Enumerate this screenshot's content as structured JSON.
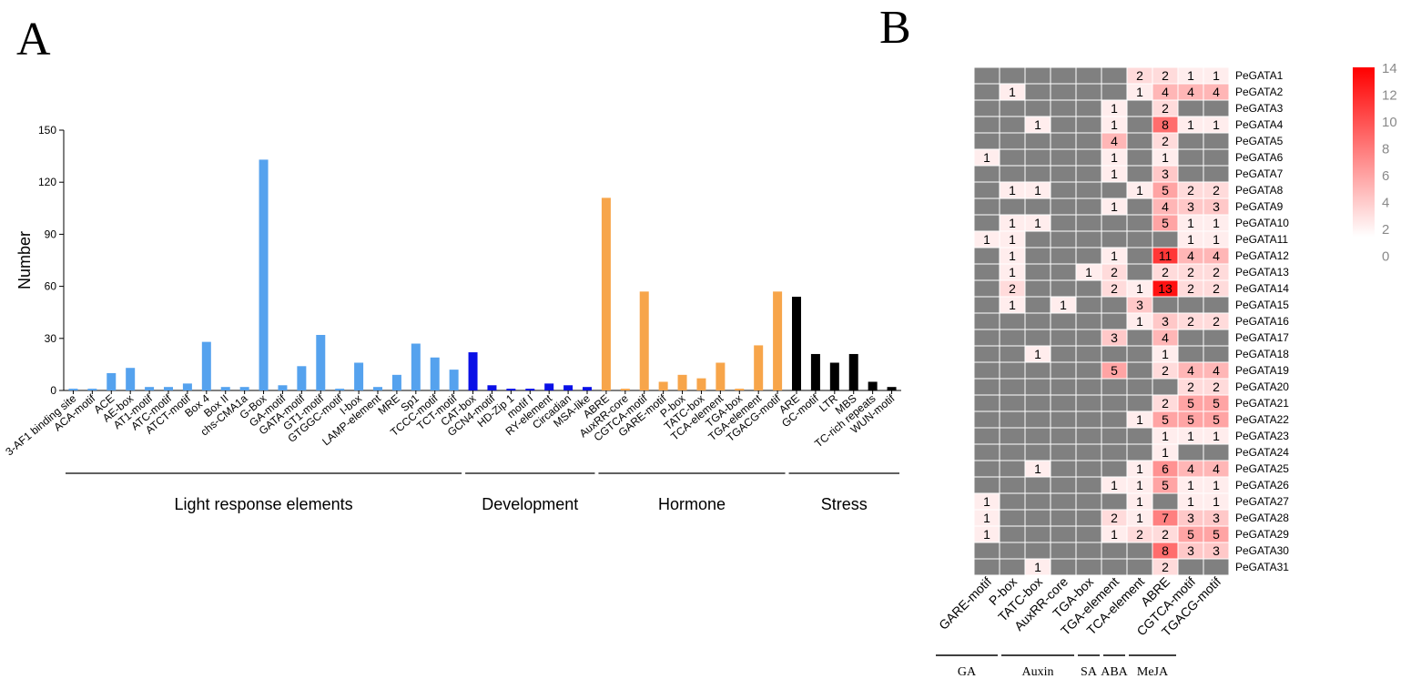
{
  "panels": {
    "a": "A",
    "b": "B"
  },
  "chart_data": [
    {
      "type": "bar",
      "panel": "A",
      "ylabel": "Number",
      "xlabel": "",
      "ylim": [
        0,
        150
      ],
      "yticks": [
        0,
        30,
        60,
        90,
        120,
        150
      ],
      "colors": {
        "Light response elements": "#55a2ee",
        "Development": "#0a10e6",
        "Hormone": "#f7a54a",
        "Stress": "#000000"
      },
      "categories": [
        "3-AF1 binding site",
        "ACA-motif",
        "ACE",
        "AE-box",
        "AT1-motif",
        "ATC-motif",
        "ATCT-motif",
        "Box 4",
        "Box II",
        "chs-CMA1a",
        "G-Box",
        "GA-motif",
        "GATA-motif",
        "GT1-motif",
        "GTGGC-motif",
        "I-box",
        "LAMP-element",
        "MRE",
        "Sp1",
        "TCCC-motif",
        "TCT-motif",
        "CAT-box",
        "GCN4-motif",
        "HD-Zip 1",
        "motif I",
        "RY-element",
        "Circadian",
        "MSA-like",
        "ABRE",
        "AuxRR-core",
        "CGTCA-motif",
        "GARE-motif",
        "P-box",
        "TATC-box",
        "TCA-element",
        "TGA-box",
        "TGA-element",
        "TGACG-motif",
        "ARE",
        "GC-motif",
        "LTR",
        "MBS",
        "TC-rich repeats",
        "WUN-motif"
      ],
      "values": [
        1,
        1,
        10,
        13,
        2,
        2,
        4,
        28,
        2,
        2,
        133,
        3,
        14,
        32,
        1,
        16,
        2,
        9,
        27,
        19,
        12,
        22,
        3,
        1,
        1,
        4,
        3,
        2,
        111,
        1,
        57,
        5,
        9,
        7,
        16,
        1,
        26,
        57,
        54,
        21,
        16,
        21,
        5,
        2
      ],
      "groups": [
        {
          "name": "Light response elements",
          "start": 0,
          "end": 20
        },
        {
          "name": "Development",
          "start": 21,
          "end": 27
        },
        {
          "name": "Hormone",
          "start": 28,
          "end": 37
        },
        {
          "name": "Stress",
          "start": 38,
          "end": 43
        }
      ]
    },
    {
      "type": "heatmap",
      "panel": "B",
      "columns": [
        "GARE-motif",
        "P-box",
        "TATC-box",
        "AuxRR-core",
        "TGA-box",
        "TGA-element",
        "TCA-element",
        "ABRE",
        "CGTCA-motif",
        "TGACG-motif"
      ],
      "rows": [
        "PeGATA1",
        "PeGATA2",
        "PeGATA3",
        "PeGATA4",
        "PeGATA5",
        "PeGATA6",
        "PeGATA7",
        "PeGATA8",
        "PeGATA9",
        "PeGATA10",
        "PeGATA11",
        "PeGATA12",
        "PeGATA13",
        "PeGATA14",
        "PeGATA15",
        "PeGATA16",
        "PeGATA17",
        "PeGATA18",
        "PeGATA19",
        "PeGATA20",
        "PeGATA21",
        "PeGATA22",
        "PeGATA23",
        "PeGATA24",
        "PeGATA25",
        "PeGATA26",
        "PeGATA27",
        "PeGATA28",
        "PeGATA29",
        "PeGATA30",
        "PeGATA31"
      ],
      "values": [
        [
          0,
          0,
          0,
          0,
          0,
          0,
          2,
          2,
          1,
          1
        ],
        [
          0,
          1,
          0,
          0,
          0,
          0,
          1,
          4,
          4,
          4
        ],
        [
          0,
          0,
          0,
          0,
          0,
          1,
          0,
          2,
          0,
          0
        ],
        [
          0,
          0,
          1,
          0,
          0,
          1,
          0,
          8,
          1,
          1
        ],
        [
          0,
          0,
          0,
          0,
          0,
          4,
          0,
          2,
          0,
          0
        ],
        [
          1,
          0,
          0,
          0,
          0,
          1,
          0,
          1,
          0,
          0
        ],
        [
          0,
          0,
          0,
          0,
          0,
          1,
          0,
          3,
          0,
          0
        ],
        [
          0,
          1,
          1,
          0,
          0,
          0,
          1,
          5,
          2,
          2
        ],
        [
          0,
          0,
          0,
          0,
          0,
          1,
          0,
          4,
          3,
          3
        ],
        [
          0,
          1,
          1,
          0,
          0,
          0,
          0,
          5,
          1,
          1
        ],
        [
          1,
          1,
          0,
          0,
          0,
          0,
          0,
          0,
          1,
          1
        ],
        [
          0,
          1,
          0,
          0,
          0,
          1,
          0,
          11,
          4,
          4
        ],
        [
          0,
          1,
          0,
          0,
          1,
          2,
          0,
          2,
          2,
          2
        ],
        [
          0,
          2,
          0,
          0,
          0,
          2,
          1,
          13,
          2,
          2
        ],
        [
          0,
          1,
          0,
          1,
          0,
          0,
          3,
          0,
          0,
          0
        ],
        [
          0,
          0,
          0,
          0,
          0,
          0,
          1,
          3,
          2,
          2
        ],
        [
          0,
          0,
          0,
          0,
          0,
          3,
          0,
          4,
          0,
          0
        ],
        [
          0,
          0,
          1,
          0,
          0,
          0,
          0,
          1,
          0,
          0
        ],
        [
          0,
          0,
          0,
          0,
          0,
          5,
          0,
          2,
          4,
          4
        ],
        [
          0,
          0,
          0,
          0,
          0,
          0,
          0,
          0,
          2,
          2
        ],
        [
          0,
          0,
          0,
          0,
          0,
          0,
          0,
          2,
          5,
          5
        ],
        [
          0,
          0,
          0,
          0,
          0,
          0,
          1,
          5,
          5,
          5
        ],
        [
          0,
          0,
          0,
          0,
          0,
          0,
          0,
          1,
          1,
          1
        ],
        [
          0,
          0,
          0,
          0,
          0,
          0,
          0,
          1,
          0,
          0
        ],
        [
          0,
          0,
          1,
          0,
          0,
          0,
          1,
          6,
          4,
          4
        ],
        [
          0,
          0,
          0,
          0,
          0,
          1,
          1,
          5,
          1,
          1
        ],
        [
          1,
          0,
          0,
          0,
          0,
          0,
          1,
          0,
          1,
          1
        ],
        [
          1,
          0,
          0,
          0,
          0,
          2,
          1,
          7,
          3,
          3
        ],
        [
          1,
          0,
          0,
          0,
          0,
          1,
          2,
          2,
          5,
          5
        ],
        [
          0,
          0,
          0,
          0,
          0,
          0,
          0,
          8,
          3,
          3
        ],
        [
          0,
          0,
          1,
          0,
          0,
          0,
          0,
          2,
          0,
          0
        ]
      ],
      "zero_color": "#808080",
      "color_low": "#ffffff",
      "color_high": "#ff0000",
      "colorbar": {
        "min": 0,
        "max": 14,
        "ticks": [
          14,
          12,
          10,
          8,
          6,
          4,
          2,
          0
        ]
      },
      "groups": [
        {
          "name": "GA",
          "start": 0,
          "end": 0
        },
        {
          "name": "Auxin",
          "start": 1,
          "end": 3
        },
        {
          "name": "SA",
          "start": 4,
          "end": 4
        },
        {
          "name": "ABA",
          "start": 5,
          "end": 5
        },
        {
          "name": "MeJA",
          "start": 6,
          "end": 7
        }
      ]
    }
  ]
}
